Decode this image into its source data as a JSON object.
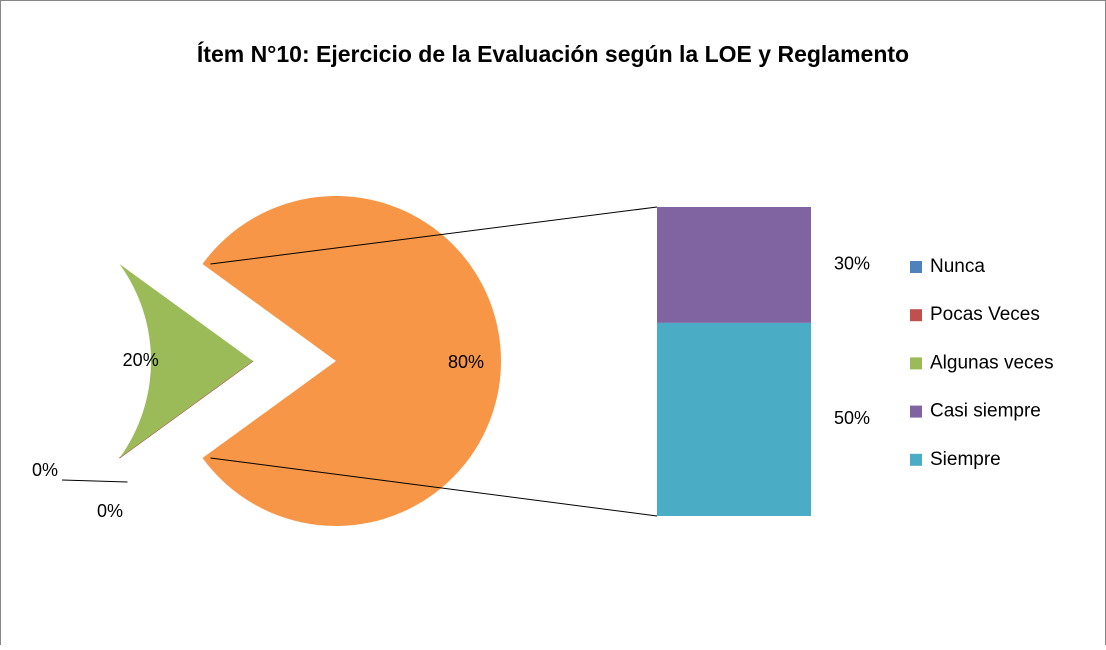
{
  "chart_data": {
    "type": "bar-of-pie",
    "title": "Ítem N°10: Ejercicio de la Evaluación según la LOE y Reglamento",
    "categories": [
      "Nunca",
      "Pocas Veces",
      "Algunas veces",
      "Casi siempre",
      "Siempre"
    ],
    "values": [
      0,
      0,
      20,
      30,
      50
    ],
    "value_labels": [
      "0%",
      "0%",
      "20%",
      "30%",
      "50%"
    ],
    "colors": [
      "#4f81bd",
      "#c0504d",
      "#9bbb59",
      "#8064a2",
      "#4bacc6"
    ],
    "secondary_total": 80,
    "secondary_total_label": "80%",
    "secondary_color": "#f79646",
    "legend": "right"
  }
}
